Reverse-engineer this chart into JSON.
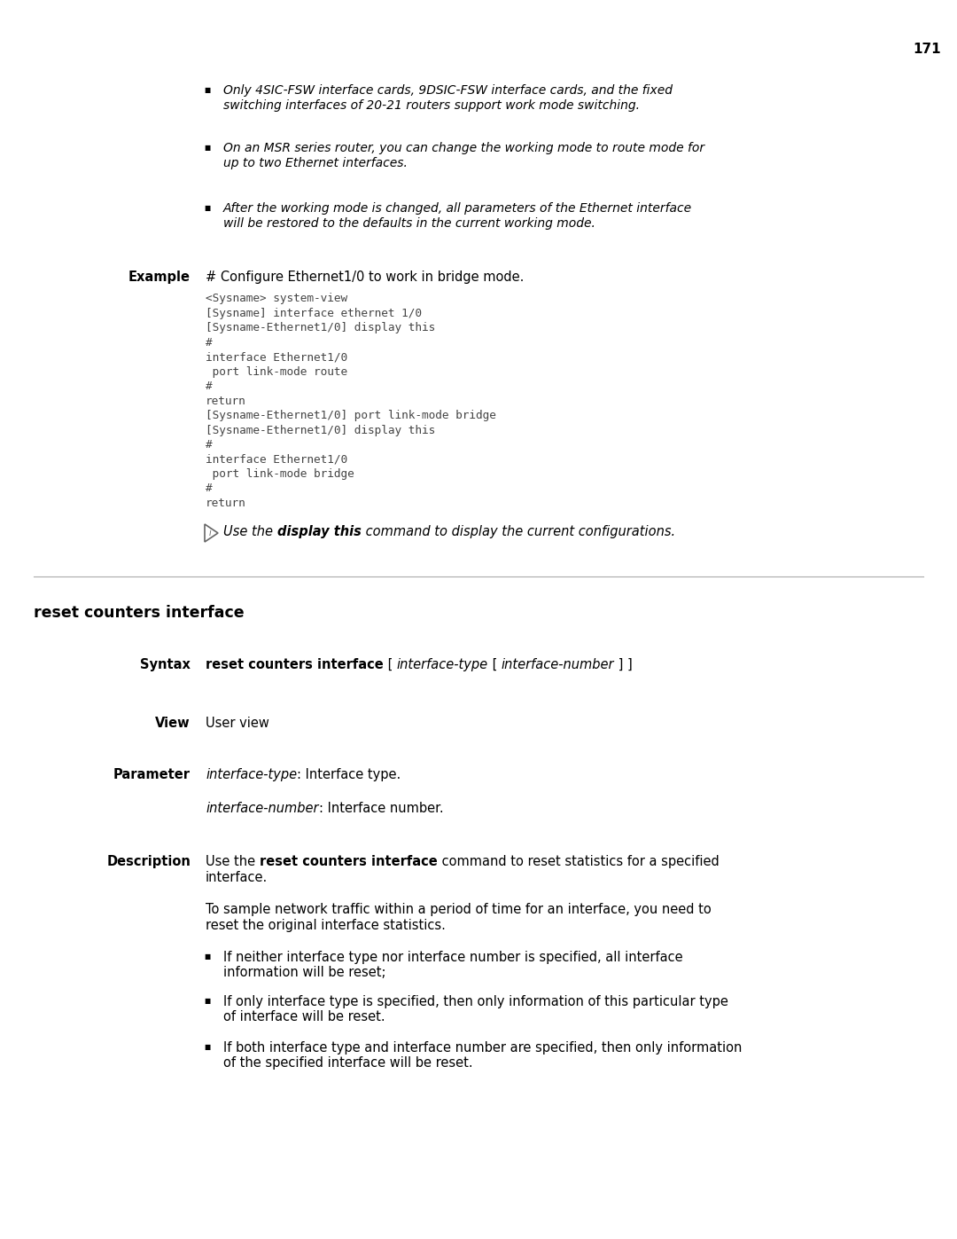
{
  "page_number": "171",
  "background_color": "#ffffff",
  "text_color": "#000000",
  "bullet_items": [
    "Only 4SIC-FSW interface cards, 9DSIC-FSW interface cards, and the fixed\nswitching interfaces of 20-21 routers support work mode switching.",
    "On an MSR series router, you can change the working mode to route mode for\nup to two Ethernet interfaces.",
    "After the working mode is changed, all parameters of the Ethernet interface\nwill be restored to the defaults in the current working mode."
  ],
  "example_label": "Example",
  "example_text": "# Configure Ethernet1/0 to work in bridge mode.",
  "code_lines": [
    "<Sysname> system-view",
    "[Sysname] interface ethernet 1/0",
    "[Sysname-Ethernet1/0] display this",
    "#",
    "interface Ethernet1/0",
    " port link-mode route",
    "#",
    "return",
    "[Sysname-Ethernet1/0] port link-mode bridge",
    "[Sysname-Ethernet1/0] display this",
    "#",
    "interface Ethernet1/0",
    " port link-mode bridge",
    "#",
    "return"
  ],
  "note_text_before": "Use the ",
  "note_bold": "display this",
  "note_text_after": " command to display the current configurations.",
  "section_title": "reset counters interface",
  "syntax_label": "Syntax",
  "syntax_bold": "reset counters interface",
  "view_label": "View",
  "view_text": "User view",
  "parameter_label": "Parameter",
  "param1_italic": "interface-type",
  "param1_text": ": Interface type.",
  "param2_italic": "interface-number",
  "param2_text": ": Interface number.",
  "description_label": "Description",
  "desc_line1_before": "Use the ",
  "desc_line1_bold": "reset counters interface",
  "desc_line1_after": " command to reset statistics for a specified",
  "desc_line1_cont": "interface.",
  "desc_line2a": "To sample network traffic within a period of time for an interface, you need to",
  "desc_line2b": "reset the original interface statistics.",
  "desc_bullets": [
    "If neither interface type nor interface number is specified, all interface\ninformation will be reset;",
    "If only interface type is specified, then only information of this particular type\nof interface will be reset.",
    "If both interface type and interface number are specified, then only information\nof the specified interface will be reset."
  ]
}
